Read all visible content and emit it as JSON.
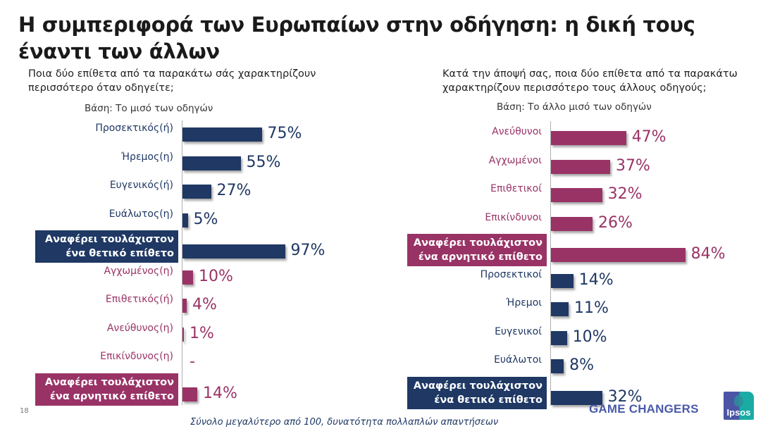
{
  "slide": {
    "title": "Η συμπεριφορά των Ευρωπαίων στην οδήγηση: η δική τους έναντι των άλλων",
    "page_number": "18",
    "footnote": "Σύνολο μεγαλύτερο από 100, δυνατότητα πολλαπλών απαντήσεων",
    "brand_text": "GAME CHANGERS",
    "logo_text": "Ipsos"
  },
  "colors": {
    "positive": "#1f3864",
    "negative": "#993366",
    "title": "#1a1a1a"
  },
  "chart_data": [
    {
      "type": "bar",
      "orientation": "horizontal",
      "question": "Ποια δύο επίθετα από τα παρακάτω σάς χαρακτηρίζουν περισσότερο όταν οδηγείτε;",
      "base": "Βάση: Το μισό των οδηγών",
      "categories": [
        "Προσεκτικός(ή)",
        "Ήρεμος(η)",
        "Ευγενικός(ή)",
        "Ευάλωτος(η)",
        "Αναφέρει τουλάχιστον ένα θετικό επίθετο",
        "Αγχωμένος(η)",
        "Επιθετικός(ή)",
        "Ανεύθυνος(η)",
        "Επικίνδυνος(η)",
        "Αναφέρει τουλάχιστον ένα αρνητικό επίθετο"
      ],
      "values": [
        75,
        55,
        27,
        5,
        97,
        10,
        4,
        1,
        0,
        14
      ],
      "value_labels": [
        "75%",
        "55%",
        "27%",
        "5%",
        "97%",
        "10%",
        "4%",
        "1%",
        "-",
        "14%"
      ],
      "polarity": [
        "positive",
        "positive",
        "positive",
        "positive",
        "positive",
        "negative",
        "negative",
        "negative",
        "negative",
        "negative"
      ],
      "summary_row": [
        false,
        false,
        false,
        false,
        true,
        false,
        false,
        false,
        false,
        true
      ],
      "xlim": [
        0,
        100
      ],
      "grid": false,
      "legend": "none"
    },
    {
      "type": "bar",
      "orientation": "horizontal",
      "question": "Κατά την άποψή σας, ποια δύο επίθετα από τα παρακάτω χαρακτηρίζουν περισσότερο τους άλλους οδηγούς;",
      "base": "Βάση: Το άλλο μισό των οδηγών",
      "categories": [
        "Ανεύθυνοι",
        "Αγχωμένοι",
        "Επιθετικοί",
        "Επικίνδυνοι",
        "Αναφέρει τουλάχιστον ένα αρνητικό επίθετο",
        "Προσεκτικοί",
        "Ήρεμοι",
        "Ευγενικοί",
        "Ευάλωτοι",
        "Αναφέρει τουλάχιστον ένα θετικό επίθετο"
      ],
      "values": [
        47,
        37,
        32,
        26,
        84,
        14,
        11,
        10,
        8,
        32
      ],
      "value_labels": [
        "47%",
        "37%",
        "32%",
        "26%",
        "84%",
        "14%",
        "11%",
        "10%",
        "8%",
        "32%"
      ],
      "polarity": [
        "negative",
        "negative",
        "negative",
        "negative",
        "negative",
        "positive",
        "positive",
        "positive",
        "positive",
        "positive"
      ],
      "summary_row": [
        false,
        false,
        false,
        false,
        true,
        false,
        false,
        false,
        false,
        true
      ],
      "xlim": [
        0,
        100
      ],
      "grid": false,
      "legend": "none"
    }
  ]
}
